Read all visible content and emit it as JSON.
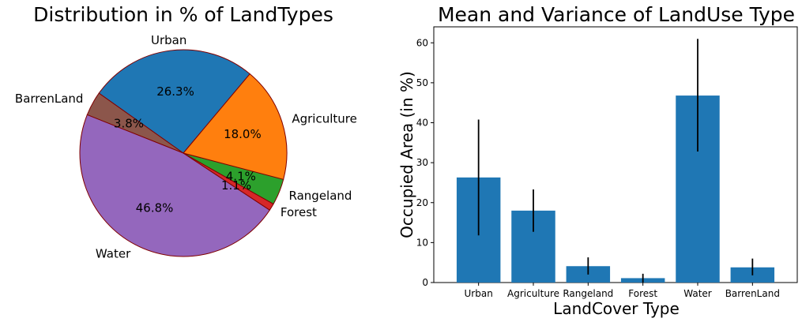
{
  "chart_data": [
    {
      "type": "pie",
      "title": "Distribution in % of LandTypes",
      "categories": [
        "Urban",
        "BarrenLand",
        "Water",
        "Forest",
        "Rangeland",
        "Agriculture"
      ],
      "values": [
        26.3,
        3.8,
        46.8,
        1.1,
        4.1,
        18.0
      ],
      "pct_labels": [
        "26.3%",
        "3.8%",
        "46.8%",
        "1.1%",
        "4.1%",
        "18.0%"
      ],
      "colors": [
        "#1f77b4",
        "#8c564b",
        "#9467bd",
        "#d62728",
        "#2ca02c",
        "#ff7f0e"
      ],
      "edge_color": "#800000",
      "start_angle_deg": 50
    },
    {
      "type": "bar",
      "title": "Mean and Variance of LandUse Type",
      "xlabel": "LandCover Type",
      "ylabel": "Occupied Area (in %)",
      "categories": [
        "Urban",
        "Agriculture",
        "Rangeland",
        "Forest",
        "Water",
        "BarrenLand"
      ],
      "values": [
        26.3,
        18.0,
        4.1,
        1.1,
        46.8,
        3.8
      ],
      "error_low": [
        11.8,
        12.7,
        2.0,
        0.0,
        32.8,
        1.8
      ],
      "error_high": [
        40.8,
        23.3,
        6.3,
        2.2,
        61.0,
        6.0
      ],
      "ylim": [
        0,
        64
      ],
      "yticks": [
        0,
        10,
        20,
        30,
        40,
        50,
        60
      ],
      "bar_color": "#1f77b4",
      "error_color": "#000000"
    }
  ]
}
